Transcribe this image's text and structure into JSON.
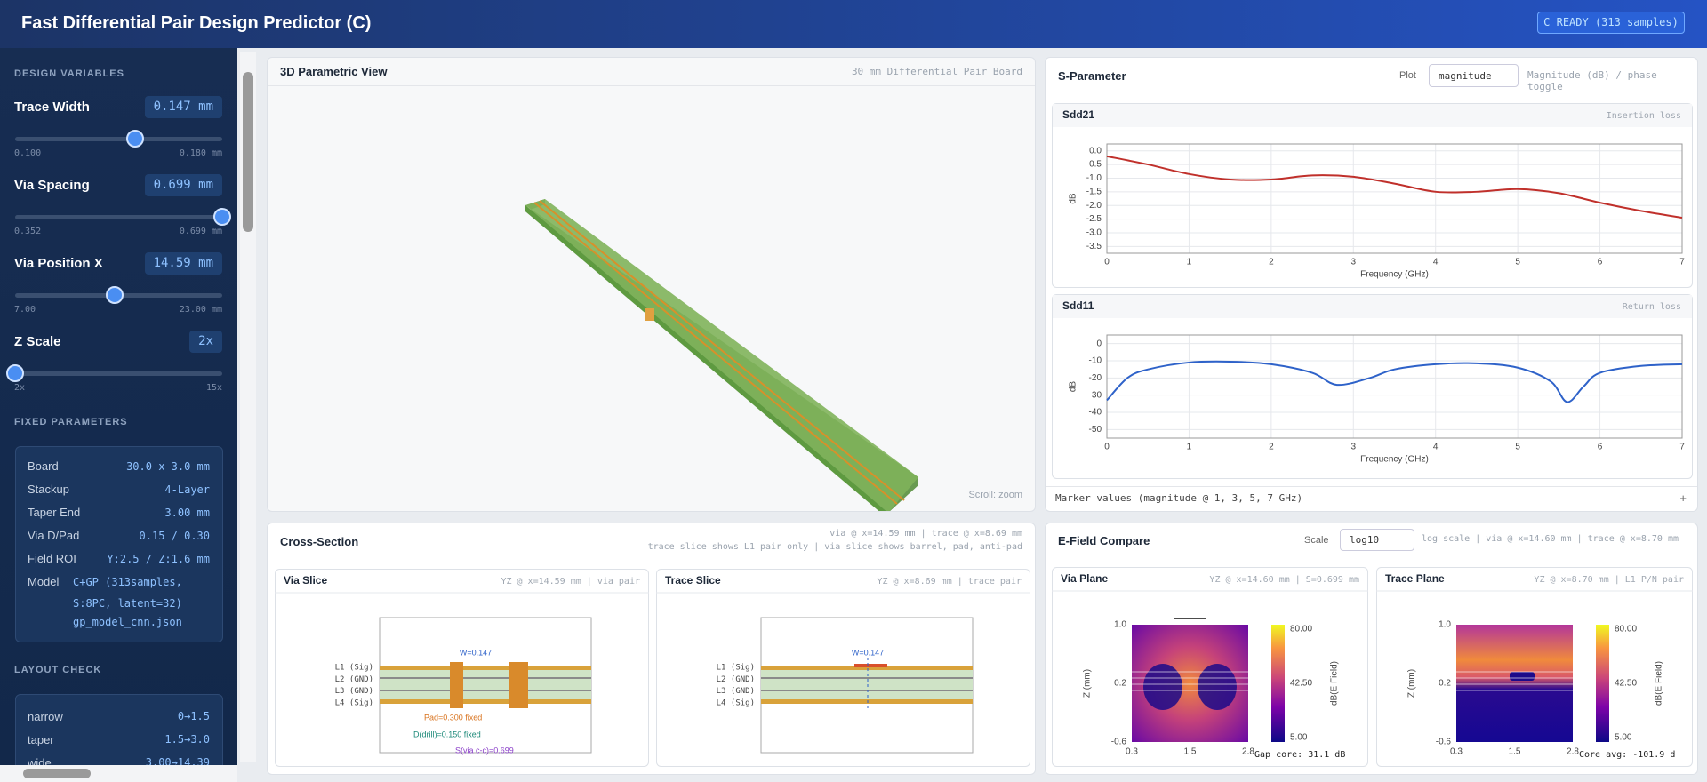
{
  "header": {
    "title": "Fast Differential Pair Design Predictor (C)",
    "status": "C READY (313 samples)"
  },
  "sidebar": {
    "design_title": "DESIGN VARIABLES",
    "sliders": [
      {
        "label": "Trace Width",
        "value": "0.147 mm",
        "min": "0.100",
        "max": "0.180 mm"
      },
      {
        "label": "Via Spacing",
        "value": "0.699 mm",
        "min": "0.352",
        "max": "0.699 mm"
      },
      {
        "label": "Via Position X",
        "value": "14.59 mm",
        "min": "7.00",
        "max": "23.00 mm"
      },
      {
        "label": "Z Scale",
        "value": "2x",
        "min": "2x",
        "max": "15x"
      }
    ],
    "fixed_title": "FIXED PARAMETERS",
    "fixed": [
      [
        "Board",
        "30.0 x 3.0 mm"
      ],
      [
        "Stackup",
        "4-Layer"
      ],
      [
        "Taper End",
        "3.00 mm"
      ],
      [
        "Via D/Pad",
        "0.15 / 0.30"
      ],
      [
        "Field ROI",
        "Y:2.5 / Z:1.6 mm"
      ],
      [
        "Model",
        "C+GP (313samples, S:8PC, latent=32)"
      ]
    ],
    "model_file": "gp_model_cnn.json",
    "layout_title": "LAYOUT CHECK",
    "layout": [
      [
        "narrow",
        "0→1.5"
      ],
      [
        "taper",
        "1.5→3.0"
      ],
      [
        "wide",
        "3.00→14.39"
      ]
    ]
  },
  "view3d": {
    "title": "3D Parametric View",
    "subtitle": "30 mm Differential Pair Board",
    "hint": "Scroll: zoom"
  },
  "sparam": {
    "title": "S-Parameter",
    "plot_label": "Plot",
    "plot_select": "magnitude",
    "note": "Magnitude (dB) / phase toggle",
    "marker": "Marker values (magnitude @ 1, 3, 5, 7 GHz)",
    "marker_add": "+"
  },
  "chart_data": [
    {
      "type": "line",
      "title": "Sdd21",
      "subtitle": "Insertion loss",
      "x_label": "Frequency (GHz)",
      "y_label": "dB",
      "color": "#c0302b",
      "grid": true,
      "x": [
        0,
        0.5,
        1,
        1.5,
        2,
        2.5,
        3,
        3.5,
        4,
        4.5,
        5,
        5.5,
        6,
        6.5,
        7
      ],
      "values": [
        -0.2,
        -0.5,
        -0.85,
        -1.05,
        -1.05,
        -0.9,
        -0.95,
        -1.2,
        -1.5,
        -1.5,
        -1.4,
        -1.55,
        -1.9,
        -2.2,
        -2.45
      ],
      "xlim": [
        0,
        7
      ],
      "xticks": [
        0,
        1,
        2,
        3,
        4,
        5,
        6,
        7
      ],
      "ylim": [
        -3.75,
        0.25
      ],
      "yticks": [
        {
          "value": 0,
          "label": "0.0"
        },
        -0.5,
        {
          "value": -1,
          "label": "-1.0"
        },
        -1.5,
        {
          "value": -2,
          "label": "-2.0"
        },
        -2.5,
        {
          "value": -3,
          "label": "-3.0"
        },
        -3.5
      ]
    },
    {
      "type": "line",
      "title": "Sdd11",
      "subtitle": "Return loss",
      "x_label": "Frequency (GHz)",
      "y_label": "dB",
      "color": "#2e62c9",
      "grid": true,
      "x": [
        0,
        0.25,
        0.5,
        1,
        1.5,
        2,
        2.5,
        2.8,
        3.2,
        3.5,
        4,
        4.5,
        5,
        5.4,
        5.6,
        5.8,
        6,
        6.5,
        7
      ],
      "values": [
        -33,
        -20,
        -15,
        -11,
        -10.5,
        -12,
        -17,
        -24,
        -20,
        -15,
        -12,
        -11.5,
        -14,
        -22,
        -34,
        -25,
        -17,
        -13,
        -12
      ],
      "xlim": [
        0,
        7
      ],
      "xticks": [
        0,
        1,
        2,
        3,
        4,
        5,
        6,
        7
      ],
      "ylim": [
        -55,
        5
      ],
      "yticks": [
        0,
        -10,
        -20,
        -30,
        -40,
        -50
      ]
    }
  ],
  "cross": {
    "title": "Cross-Section",
    "info1": "via @ x=14.59 mm | trace @ x=8.69 mm",
    "info2": "trace slice shows L1 pair only | via slice shows barrel, pad, anti-pad",
    "via": {
      "title": "Via Slice",
      "note": "YZ @ x=14.59 mm | via pair",
      "w": "W=0.147",
      "pad": "Pad=0.300 fixed",
      "drill": "D(drill)=0.150 fixed",
      "spacing": "S(via c-c)=0.699"
    },
    "trace": {
      "title": "Trace Slice",
      "note": "YZ @ x=8.69 mm | trace pair",
      "w": "W=0.147"
    },
    "layers": [
      "L1 (Sig)",
      "L2 (GND)",
      "L3 (GND)",
      "L4 (Sig)"
    ]
  },
  "efield": {
    "title": "E-Field Compare",
    "scale_label": "Scale",
    "scale_select": "log10",
    "note": "log scale | via @ x=14.60 mm | trace @ x=8.70 mm",
    "via": {
      "title": "Via Plane",
      "note": "YZ @ x=14.60 mm | S=0.699 mm",
      "footer": "Gap core: 31.1 dB"
    },
    "trace": {
      "title": "Trace Plane",
      "note": "YZ @ x=8.70 mm | L1 P/N pair",
      "footer": "Core avg: -101.9 d"
    },
    "y_ticks": [
      "1.0",
      "0.2",
      "-0.6"
    ],
    "x_ticks": [
      "0.3",
      "1.5",
      "2.8"
    ],
    "y_label": "Z (mm)",
    "cbar_ticks": [
      "80.00",
      "42.50",
      "5.00"
    ],
    "cbar_label": "dB(E Field)"
  }
}
